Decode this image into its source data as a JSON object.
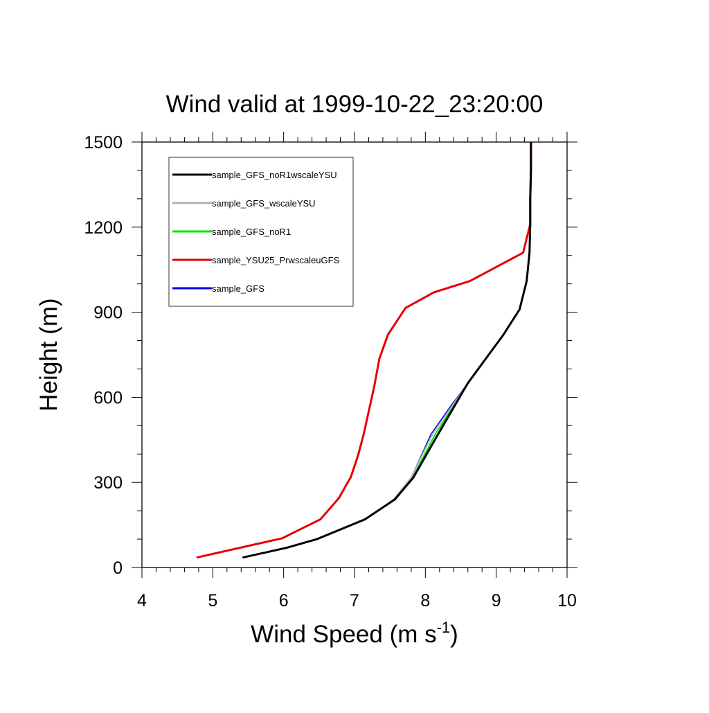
{
  "chart_data": {
    "type": "line",
    "title": "Wind valid at 1999-10-22_23:20:00",
    "xlabel": "Wind Speed (m s",
    "xlabel_superscript": "-1",
    "xlabel_suffix": ")",
    "ylabel": "Height (m)",
    "xlim": [
      4,
      10
    ],
    "ylim": [
      0,
      1500
    ],
    "x_ticks": [
      4,
      5,
      6,
      7,
      8,
      9,
      10
    ],
    "y_ticks": [
      0,
      300,
      600,
      900,
      1200,
      1500
    ],
    "x_tick_labels": [
      "4",
      "5",
      "6",
      "7",
      "8",
      "9",
      "10"
    ],
    "y_tick_labels": [
      "0",
      "300",
      "600",
      "900",
      "1200",
      "1500"
    ],
    "grid": false,
    "legend_position": "top-left",
    "series": [
      {
        "name": "sample_GFS_noR1wscaleYSU",
        "color": "#000000",
        "width": 3,
        "points": [
          [
            5.42,
            35
          ],
          [
            6.05,
            70
          ],
          [
            6.47,
            100
          ],
          [
            7.15,
            170
          ],
          [
            7.57,
            240
          ],
          [
            7.83,
            317
          ],
          [
            8.18,
            470
          ],
          [
            8.6,
            650
          ],
          [
            8.82,
            725
          ],
          [
            9.1,
            820
          ],
          [
            9.33,
            910
          ],
          [
            9.43,
            1010
          ],
          [
            9.47,
            1110
          ],
          [
            9.48,
            1210
          ],
          [
            9.48,
            1300
          ],
          [
            9.49,
            1400
          ],
          [
            9.49,
            1500
          ]
        ]
      },
      {
        "name": "sample_GFS_wscaleYSU",
        "color": "#b3b3b3",
        "width": 2,
        "points": [
          [
            5.42,
            35
          ],
          [
            6.05,
            70
          ],
          [
            6.47,
            100
          ],
          [
            7.15,
            168
          ],
          [
            7.55,
            240
          ],
          [
            7.8,
            317
          ],
          [
            8.1,
            470
          ],
          [
            8.38,
            570
          ],
          [
            8.6,
            650
          ],
          [
            8.82,
            725
          ],
          [
            9.1,
            820
          ],
          [
            9.33,
            910
          ],
          [
            9.43,
            1010
          ],
          [
            9.47,
            1110
          ],
          [
            9.48,
            1210
          ],
          [
            9.48,
            1300
          ],
          [
            9.49,
            1400
          ],
          [
            9.49,
            1500
          ]
        ]
      },
      {
        "name": "sample_GFS_noR1",
        "color": "#00e600",
        "width": 2,
        "points": [
          [
            5.42,
            35
          ],
          [
            6.05,
            70
          ],
          [
            6.47,
            100
          ],
          [
            7.15,
            169
          ],
          [
            7.56,
            240
          ],
          [
            7.82,
            317
          ],
          [
            8.14,
            470
          ],
          [
            8.4,
            570
          ],
          [
            8.6,
            650
          ],
          [
            8.82,
            725
          ],
          [
            9.1,
            820
          ],
          [
            9.33,
            910
          ],
          [
            9.43,
            1010
          ],
          [
            9.47,
            1110
          ],
          [
            9.48,
            1210
          ],
          [
            9.48,
            1300
          ],
          [
            9.49,
            1400
          ],
          [
            9.49,
            1500
          ]
        ]
      },
      {
        "name": "sample_YSU25_PrwscaleuGFS",
        "color": "#e60000",
        "width": 3,
        "points": [
          [
            4.77,
            35
          ],
          [
            5.98,
            103
          ],
          [
            6.52,
            170
          ],
          [
            6.78,
            245
          ],
          [
            6.95,
            320
          ],
          [
            7.05,
            395
          ],
          [
            7.13,
            470
          ],
          [
            7.28,
            640
          ],
          [
            7.35,
            735
          ],
          [
            7.47,
            820
          ],
          [
            7.72,
            915
          ],
          [
            8.12,
            970
          ],
          [
            8.63,
            1010
          ],
          [
            9.38,
            1110
          ],
          [
            9.48,
            1210
          ],
          [
            9.48,
            1300
          ],
          [
            9.49,
            1400
          ],
          [
            9.49,
            1500
          ]
        ]
      },
      {
        "name": "sample_GFS",
        "color": "#0000e6",
        "width": 1.5,
        "points": [
          [
            5.42,
            35
          ],
          [
            6.05,
            70
          ],
          [
            6.47,
            100
          ],
          [
            7.15,
            168
          ],
          [
            7.55,
            240
          ],
          [
            7.8,
            317
          ],
          [
            8.08,
            470
          ],
          [
            8.36,
            570
          ],
          [
            8.6,
            650
          ],
          [
            8.82,
            725
          ],
          [
            9.1,
            820
          ],
          [
            9.33,
            910
          ],
          [
            9.43,
            1010
          ],
          [
            9.47,
            1110
          ],
          [
            9.48,
            1210
          ],
          [
            9.48,
            1300
          ],
          [
            9.49,
            1400
          ],
          [
            9.49,
            1500
          ]
        ]
      }
    ]
  }
}
